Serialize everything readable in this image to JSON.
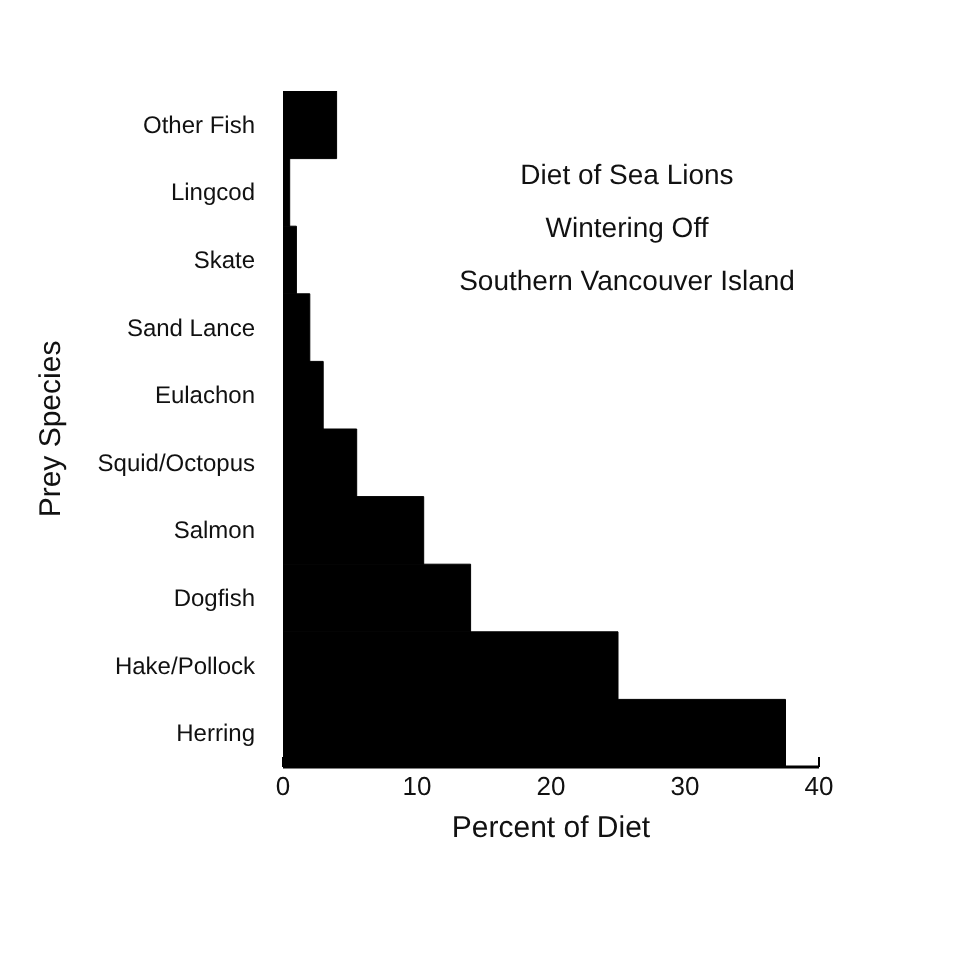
{
  "chart_data": {
    "type": "bar",
    "orientation": "horizontal",
    "title": "Diet of Sea Lions\nWintering Off\nSouthern Vancouver Island",
    "categories": [
      "Other Fish",
      "Lingcod",
      "Skate",
      "Sand Lance",
      "Eulachon",
      "Squid/Octopus",
      "Salmon",
      "Dogfish",
      "Hake/Pollock",
      "Herring"
    ],
    "values": [
      4,
      0.5,
      1,
      2,
      3,
      5.5,
      10.5,
      14,
      25,
      37.5
    ],
    "color": "#000000",
    "xlim": [
      0,
      40
    ],
    "xticks": [
      0,
      10,
      20,
      30,
      40
    ],
    "xlabel": "Percent of Diet",
    "ylabel": "Prey Species",
    "grid": false
  }
}
